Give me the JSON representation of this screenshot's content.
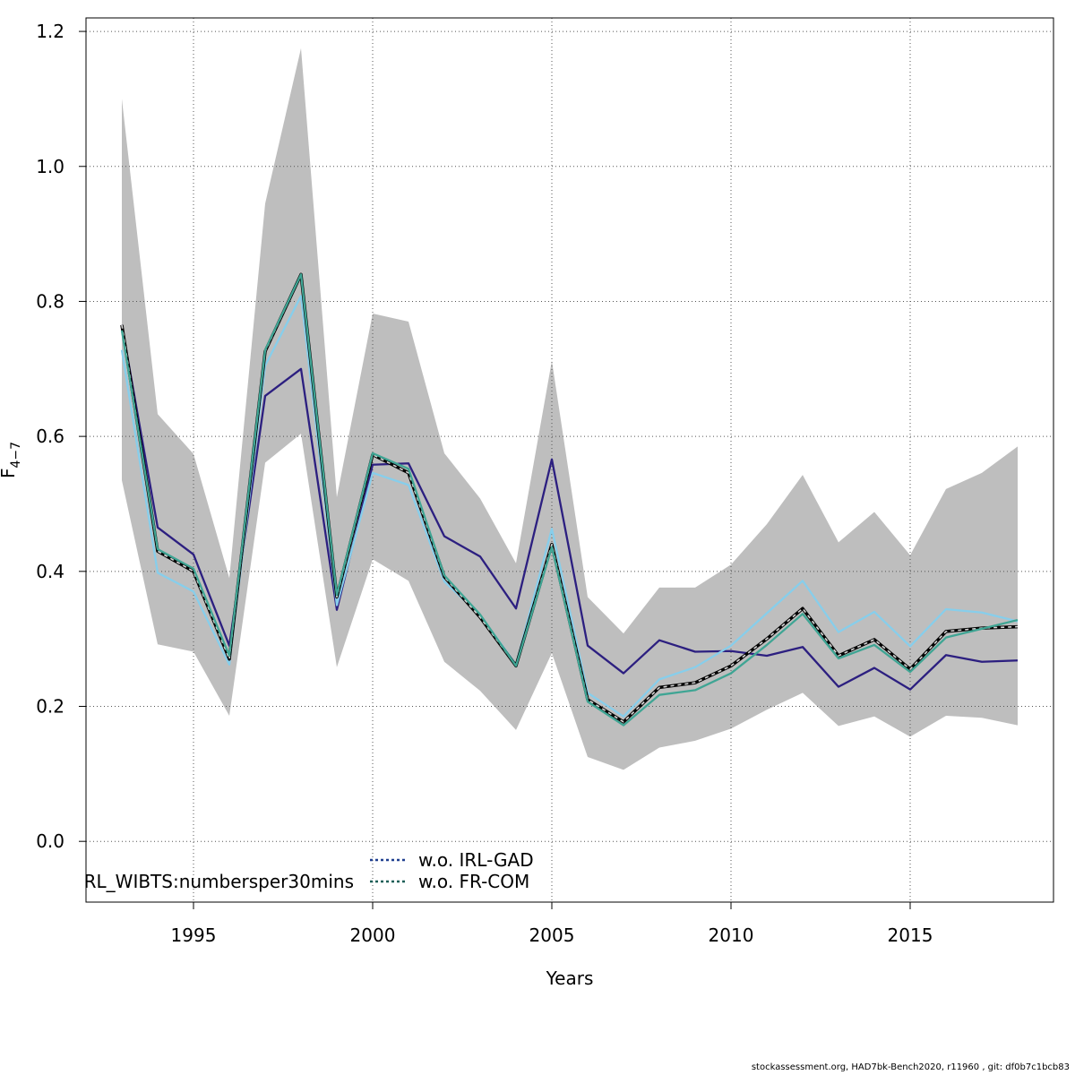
{
  "chart_data": {
    "type": "line",
    "xlabel": "Years",
    "ylabel_main": "F",
    "ylabel_sub": "4−7",
    "xlim": [
      1992,
      2019
    ],
    "ylim": [
      -0.09,
      1.22
    ],
    "xticks": [
      1995,
      2000,
      2005,
      2010,
      2015
    ],
    "xtick_labels": [
      "1995",
      "2000",
      "2005",
      "2010",
      "2015"
    ],
    "yticks": [
      0.0,
      0.2,
      0.4,
      0.6,
      0.8,
      1.0,
      1.2
    ],
    "ytick_labels": [
      "0.0",
      "0.2",
      "0.4",
      "0.6",
      "0.8",
      "1.0",
      "1.2"
    ],
    "grid": true,
    "years": [
      1993,
      1994,
      1995,
      1996,
      1997,
      1998,
      1999,
      2000,
      2001,
      2002,
      2003,
      2004,
      2005,
      2006,
      2007,
      2008,
      2009,
      2010,
      2011,
      2012,
      2013,
      2014,
      2015,
      2016,
      2017,
      2018
    ],
    "band": {
      "color": "#bebebe",
      "upper": [
        1.1,
        0.633,
        0.574,
        0.39,
        0.945,
        1.175,
        0.51,
        0.782,
        0.77,
        0.575,
        0.508,
        0.412,
        0.712,
        0.362,
        0.308,
        0.376,
        0.376,
        0.41,
        0.47,
        0.543,
        0.443,
        0.488,
        0.424,
        0.522,
        0.546,
        0.585
      ],
      "lower": [
        0.535,
        0.292,
        0.281,
        0.186,
        0.561,
        0.604,
        0.258,
        0.418,
        0.386,
        0.266,
        0.223,
        0.165,
        0.279,
        0.125,
        0.106,
        0.139,
        0.149,
        0.167,
        0.195,
        0.22,
        0.171,
        0.185,
        0.155,
        0.186,
        0.183,
        0.172
      ]
    },
    "series": [
      {
        "name": "",
        "color": "#2c1f80",
        "dash": "",
        "width": 2.3,
        "values": [
          0.765,
          0.465,
          0.425,
          0.29,
          0.66,
          0.7,
          0.343,
          0.558,
          0.56,
          0.452,
          0.422,
          0.345,
          0.566,
          0.29,
          0.249,
          0.298,
          0.281,
          0.282,
          0.275,
          0.288,
          0.229,
          0.257,
          0.225,
          0.276,
          0.266,
          0.268
        ]
      },
      {
        "name": "",
        "color": "#87ceeb",
        "dash": "",
        "width": 2.3,
        "values": [
          0.728,
          0.398,
          0.37,
          0.262,
          0.705,
          0.808,
          0.35,
          0.546,
          0.528,
          0.385,
          0.335,
          0.262,
          0.463,
          0.22,
          0.185,
          0.24,
          0.258,
          0.29,
          0.338,
          0.386,
          0.31,
          0.34,
          0.289,
          0.344,
          0.339,
          0.326
        ]
      },
      {
        "name": "",
        "color": "#000000",
        "dash": "",
        "width": 3.5,
        "values": [
          0.765,
          0.43,
          0.4,
          0.27,
          0.726,
          0.84,
          0.362,
          0.573,
          0.546,
          0.392,
          0.332,
          0.26,
          0.44,
          0.21,
          0.177,
          0.228,
          0.235,
          0.26,
          0.3,
          0.345,
          0.275,
          0.299,
          0.255,
          0.311,
          0.316,
          0.318
        ]
      },
      {
        "name": "",
        "color": "#d9d9d9",
        "dash": "4,4",
        "width": 1.6,
        "values": [
          0.765,
          0.43,
          0.4,
          0.27,
          0.726,
          0.84,
          0.362,
          0.573,
          0.546,
          0.392,
          0.332,
          0.26,
          0.44,
          0.21,
          0.177,
          0.228,
          0.235,
          0.26,
          0.3,
          0.345,
          0.275,
          0.299,
          0.255,
          0.311,
          0.316,
          0.318
        ]
      },
      {
        "name": "",
        "color": "#3fa594",
        "dash": "",
        "width": 2.3,
        "values": [
          0.757,
          0.433,
          0.404,
          0.275,
          0.728,
          0.84,
          0.365,
          0.575,
          0.552,
          0.394,
          0.336,
          0.26,
          0.436,
          0.207,
          0.172,
          0.217,
          0.224,
          0.249,
          0.291,
          0.337,
          0.271,
          0.291,
          0.251,
          0.302,
          0.315,
          0.328
        ]
      }
    ],
    "legend": {
      "left_label": "RL_WIBTS:numbersper30mins",
      "items": [
        {
          "label": "w.o. IRL-GAD",
          "color": "#1f3f8f",
          "dash": "3,3"
        },
        {
          "label": "w.o. FR-COM",
          "color": "#1e5f58",
          "dash": "3,3"
        }
      ]
    }
  },
  "footer": "stockassessment.org, HAD7bk-Bench2020, r11960 , git: df0b7c1bcb83"
}
